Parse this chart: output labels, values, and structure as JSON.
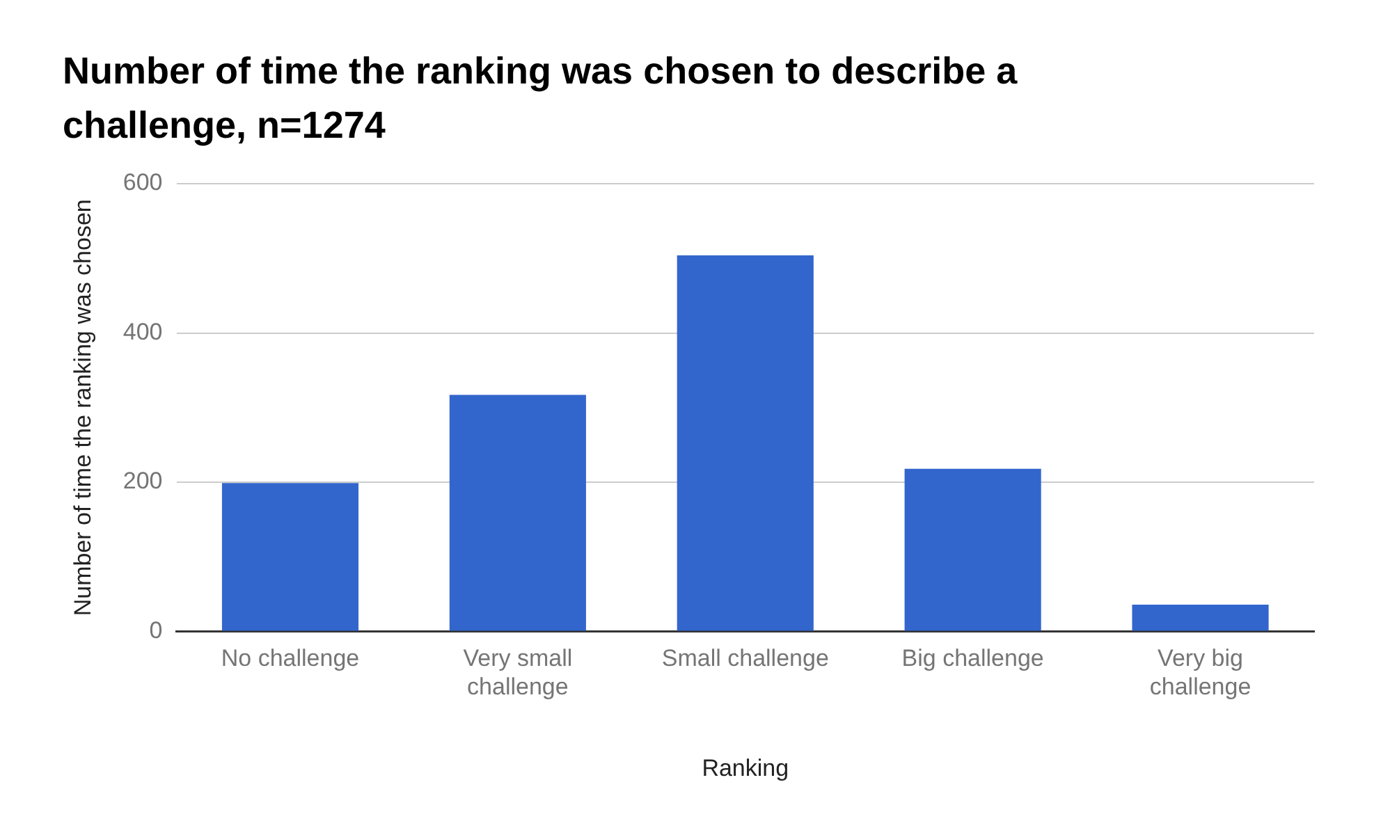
{
  "chart_data": {
    "type": "bar",
    "title": "Number of time the ranking was chosen to describe a challenge, n=1274",
    "xlabel": "Ranking",
    "ylabel": "Number of time the ranking was chosen",
    "categories": [
      "No challenge",
      "Very small challenge",
      "Small challenge",
      "Big challenge",
      "Very big challenge"
    ],
    "values": [
      199,
      317,
      504,
      218,
      36
    ],
    "color": "#3366cc",
    "ylim": [
      0,
      600
    ],
    "yticks": [
      0,
      200,
      400,
      600
    ],
    "grid": "y",
    "legend": false
  }
}
